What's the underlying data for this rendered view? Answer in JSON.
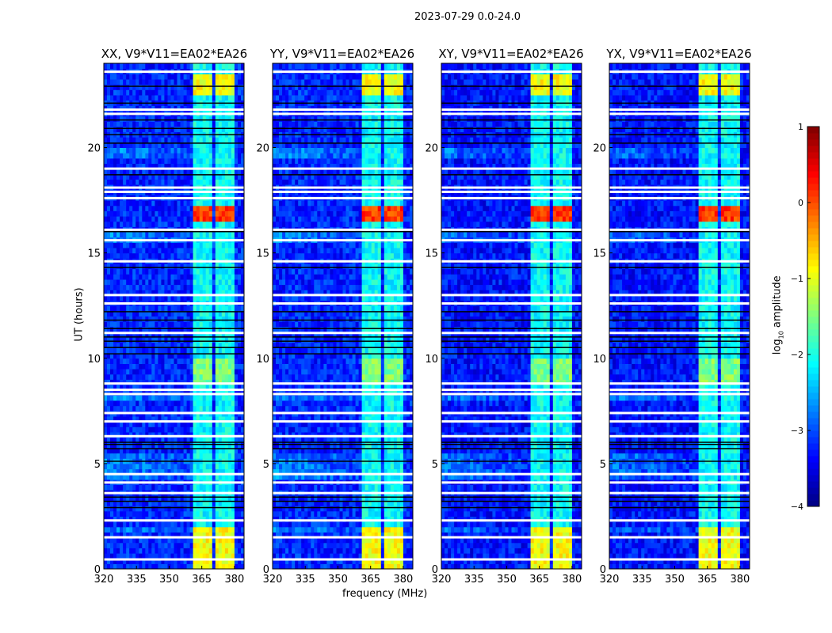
{
  "chart_data": {
    "type": "heatmap",
    "title": "2023-07-29 0.0-24.0",
    "xlabel": "frequency (MHz)",
    "ylabel": "UT (hours)",
    "xlim": [
      320,
      384.4
    ],
    "ylim": [
      0,
      24
    ],
    "xticks": [
      "320",
      "335",
      "350",
      "365",
      "380"
    ],
    "xtick_values": [
      320,
      335,
      350,
      365,
      380
    ],
    "yticks": [
      "0",
      "5",
      "10",
      "15",
      "20"
    ],
    "ytick_values": [
      0,
      5,
      10,
      15,
      20
    ],
    "colormap": "jet",
    "colorbar": {
      "label": "log10 amplitude",
      "label_main": "log",
      "label_sub": "10",
      "label_rest": " amplitude",
      "range": [
        -4,
        1
      ],
      "ticks": [
        "1",
        "0",
        "−1",
        "−2",
        "−3",
        "−4"
      ],
      "tick_values": [
        1,
        0,
        -1,
        -2,
        -3,
        -4
      ]
    },
    "panels": [
      {
        "title": "XX, V9*V11=EA02*EA26",
        "background_level": -3.2
      },
      {
        "title": "YY, V9*V11=EA02*EA26",
        "background_level": -3.2
      },
      {
        "title": "XY, V9*V11=EA02*EA26",
        "background_level": -3.3
      },
      {
        "title": "YX, V9*V11=EA02*EA26",
        "background_level": -3.3
      }
    ],
    "bright_channels_mhz": [
      [
        360.7,
        365.1
      ],
      [
        365.8,
        370.2
      ],
      [
        370.9,
        375.3
      ],
      [
        376,
        380
      ]
    ],
    "rfi_intervals": [
      {
        "t": [
          0,
          2.1
        ],
        "level": -0.9
      },
      {
        "t": [
          8.7,
          10.0
        ],
        "level": -1.5
      },
      {
        "t": [
          16.5,
          17.3
        ],
        "level": 0.1
      },
      {
        "t": [
          22.4,
          23.6
        ],
        "level": -0.9
      },
      {
        "t": [
          2.1,
          24
        ],
        "level": -2.1
      }
    ],
    "broadband_bands": [
      [
        4.2,
        5.6
      ],
      [
        7.9,
        8.2
      ],
      [
        15.5,
        15.9
      ],
      [
        19.4,
        19.9
      ],
      [
        1.8,
        2.1
      ]
    ],
    "flagged_white_hours": [
      0.45,
      1.5,
      2.3,
      3.6,
      4.1,
      4.5,
      6.3,
      7.0,
      7.4,
      8.3,
      8.5,
      8.8,
      11.2,
      12.6,
      13.0,
      14.6,
      15.6,
      16.1,
      17.6,
      17.9,
      18.1,
      19.0,
      21.6,
      21.8,
      23.6
    ],
    "flagged_black_hours": [
      2.9,
      3.2,
      3.4,
      5.1,
      5.7,
      5.9,
      6.0,
      10.2,
      10.5,
      10.8,
      11.0,
      11.4,
      11.8,
      12.2,
      14.3,
      16.0,
      18.7,
      20.2,
      20.6,
      20.9,
      21.3,
      22.1,
      22.9
    ]
  }
}
